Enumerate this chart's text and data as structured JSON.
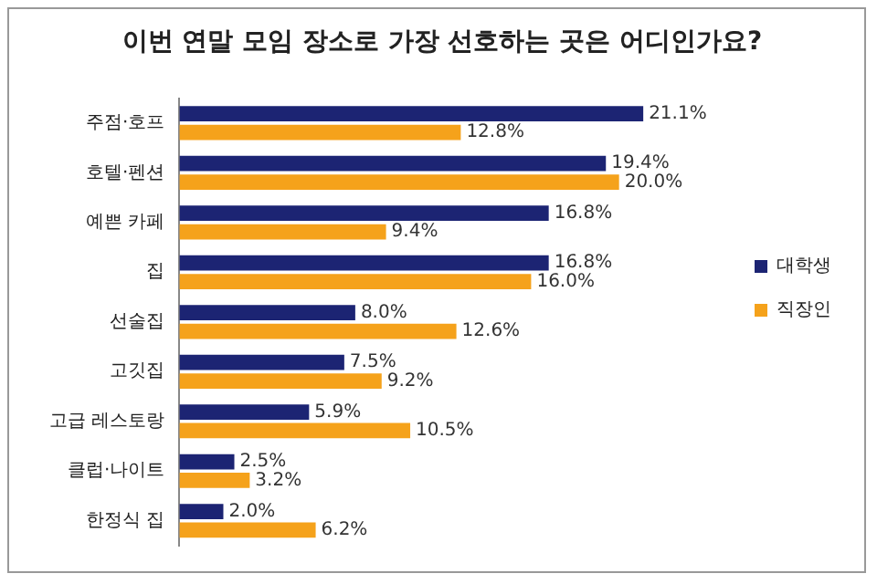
{
  "chart_data": {
    "type": "bar",
    "orientation": "horizontal",
    "title": "이번 연말 모임 장소로 가장 선호하는 곳은 어디인가요?",
    "categories": [
      "주점·호프",
      "호텔·펜션",
      "예쁜 카페",
      "집",
      "선술집",
      "고깃집",
      "고급 레스토랑",
      "클럽·나이트",
      "한정식 집"
    ],
    "series": [
      {
        "name": "대학생",
        "color": "#1c2473",
        "values": [
          21.1,
          19.4,
          16.8,
          16.8,
          8.0,
          7.5,
          5.9,
          2.5,
          2.0
        ],
        "value_labels": [
          "21.1%",
          "19.4%",
          "16.8%",
          "16.8%",
          "8.0%",
          "7.5%",
          "5.9%",
          "2.5%",
          "2.0%"
        ]
      },
      {
        "name": "직장인",
        "color": "#f5a21b",
        "values": [
          12.8,
          20.0,
          9.4,
          16.0,
          12.6,
          9.2,
          10.5,
          3.2,
          6.2
        ],
        "value_labels": [
          "12.8%",
          "20.0%",
          "9.4%",
          "16.0%",
          "12.6%",
          "9.2%",
          "10.5%",
          "3.2%",
          "6.2%"
        ]
      }
    ],
    "tick_labels": "y",
    "grid": false,
    "legend": "right"
  }
}
